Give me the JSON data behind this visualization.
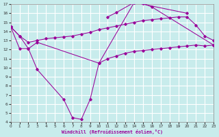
{
  "bg_color": "#c8ecec",
  "grid_color": "#ffffff",
  "line_color": "#990099",
  "xlabel": "Windchill (Refroidissement éolien,°C)",
  "xlim": [
    0,
    23
  ],
  "ylim": [
    4,
    17
  ],
  "xticks": [
    0,
    1,
    2,
    3,
    4,
    5,
    6,
    7,
    8,
    9,
    10,
    11,
    12,
    13,
    14,
    15,
    16,
    17,
    18,
    19,
    20,
    21,
    22,
    23
  ],
  "yticks": [
    4,
    5,
    6,
    7,
    8,
    9,
    10,
    11,
    12,
    13,
    14,
    15,
    16,
    17
  ],
  "curve1_x": [
    0,
    1,
    2,
    3,
    6,
    7,
    8,
    9,
    10,
    14,
    15,
    16,
    23
  ],
  "curve1_y": [
    14.5,
    13.5,
    12.1,
    9.8,
    6.5,
    4.5,
    4.3,
    6.5,
    10.5,
    17.2,
    17.1,
    16.7,
    12.5
  ],
  "curve2_x": [
    0,
    1,
    2,
    3,
    4,
    5,
    6,
    7,
    8,
    9,
    10,
    11,
    12,
    13,
    14,
    15,
    16,
    17,
    18,
    19,
    20,
    21,
    22,
    23
  ],
  "curve2_y": [
    14.5,
    13.5,
    12.8,
    13.0,
    13.2,
    13.3,
    13.4,
    13.5,
    13.7,
    13.9,
    14.2,
    14.4,
    14.6,
    14.8,
    15.0,
    15.2,
    15.3,
    15.4,
    15.5,
    15.6,
    15.6,
    14.7,
    13.5,
    13.0
  ],
  "curve3_x": [
    0,
    1,
    2,
    3,
    10,
    11,
    12,
    13,
    14,
    15,
    16,
    17,
    18,
    19,
    20,
    21,
    22,
    23
  ],
  "curve3_y": [
    14.5,
    12.1,
    12.1,
    12.8,
    10.5,
    11.0,
    11.3,
    11.6,
    11.8,
    11.9,
    12.0,
    12.1,
    12.2,
    12.3,
    12.4,
    12.5,
    12.4,
    12.5
  ],
  "curve4_x": [
    11,
    12,
    14,
    20
  ],
  "curve4_y": [
    15.6,
    16.1,
    17.2,
    16.0
  ]
}
